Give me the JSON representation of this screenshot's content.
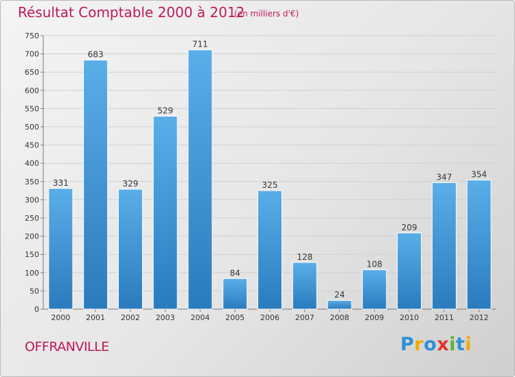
{
  "header": {
    "title": "Résultat Comptable 2000 à 2012",
    "subtitle": "(en milliers d'€)"
  },
  "footer": {
    "place": "OFFRANVILLE",
    "brand_letters": [
      {
        "char": "P",
        "color": "#2e8fd6"
      },
      {
        "char": "r",
        "color": "#f2a900"
      },
      {
        "char": "o",
        "color": "#2e8fd6"
      },
      {
        "char": "x",
        "color": "#e0322f"
      },
      {
        "char": "i",
        "color": "#5bb031"
      },
      {
        "char": "t",
        "color": "#2e8fd6"
      },
      {
        "char": "i",
        "color": "#f2a900"
      }
    ]
  },
  "chart_data": {
    "type": "bar",
    "categories": [
      "2000",
      "2001",
      "2002",
      "2003",
      "2004",
      "2005",
      "2006",
      "2007",
      "2008",
      "2009",
      "2010",
      "2011",
      "2012"
    ],
    "values": [
      331,
      683,
      329,
      529,
      711,
      84,
      325,
      128,
      24,
      108,
      209,
      347,
      354
    ],
    "ylim": [
      0,
      750
    ],
    "yticks": [
      0,
      50,
      100,
      150,
      200,
      250,
      300,
      350,
      400,
      450,
      500,
      550,
      600,
      650,
      700,
      750
    ],
    "grid": true,
    "bar_color": "#4aa3e2",
    "bar_color_dark": "#2a7bbd"
  }
}
